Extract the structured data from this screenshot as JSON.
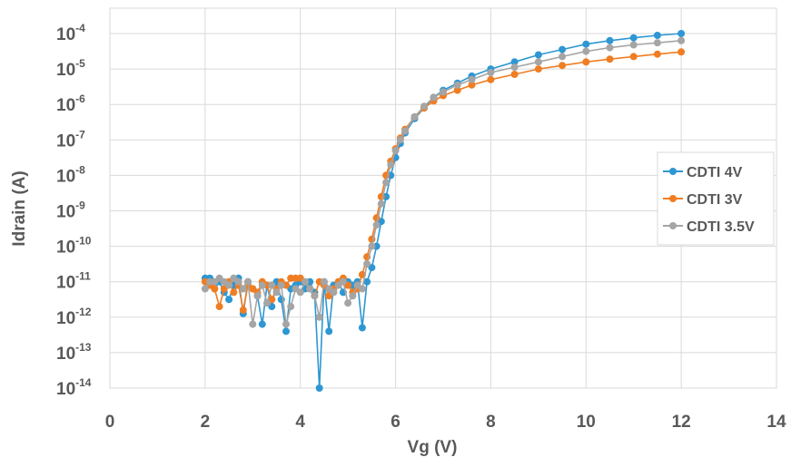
{
  "chart_data": {
    "type": "scatter",
    "xlabel": "Vg (V)",
    "ylabel": "Idrain (A)",
    "xlim": [
      0,
      14
    ],
    "ylim_exponent": [
      -14,
      -4
    ],
    "y_scale": "log",
    "x_ticks": [
      "0",
      "2",
      "4",
      "6",
      "8",
      "10",
      "12",
      "14"
    ],
    "y_ticks": [
      {
        "base": "10",
        "exp": "-4"
      },
      {
        "base": "10",
        "exp": "-5"
      },
      {
        "base": "10",
        "exp": "-6"
      },
      {
        "base": "10",
        "exp": "-7"
      },
      {
        "base": "10",
        "exp": "-8"
      },
      {
        "base": "10",
        "exp": "-9"
      },
      {
        "base": "10",
        "exp": "-10"
      },
      {
        "base": "10",
        "exp": "-11"
      },
      {
        "base": "10",
        "exp": "-12"
      },
      {
        "base": "10",
        "exp": "-13"
      },
      {
        "base": "10",
        "exp": "-14"
      }
    ],
    "grid": true,
    "legend_position": "right",
    "series": [
      {
        "name": "CDTI 4V",
        "color": "#2e97d3",
        "points": [
          [
            2.0,
            -10.9
          ],
          [
            2.1,
            -10.9
          ],
          [
            2.2,
            -11.2
          ],
          [
            2.3,
            -11.0
          ],
          [
            2.4,
            -11.3
          ],
          [
            2.5,
            -11.5
          ],
          [
            2.6,
            -11.1
          ],
          [
            2.7,
            -10.9
          ],
          [
            2.8,
            -11.9
          ],
          [
            2.9,
            -11.0
          ],
          [
            3.0,
            -11.2
          ],
          [
            3.1,
            -11.4
          ],
          [
            3.2,
            -12.2
          ],
          [
            3.3,
            -11.1
          ],
          [
            3.4,
            -11.7
          ],
          [
            3.5,
            -11.0
          ],
          [
            3.6,
            -11.5
          ],
          [
            3.7,
            -12.4
          ],
          [
            3.8,
            -11.2
          ],
          [
            3.9,
            -11.1
          ],
          [
            4.0,
            -11.0
          ],
          [
            4.1,
            -11.2
          ],
          [
            4.2,
            -11.0
          ],
          [
            4.3,
            -11.3
          ],
          [
            4.4,
            -14.0
          ],
          [
            4.5,
            -11.0
          ],
          [
            4.6,
            -12.4
          ],
          [
            4.7,
            -11.1
          ],
          [
            4.8,
            -11.0
          ],
          [
            4.9,
            -11.3
          ],
          [
            5.0,
            -11.0
          ],
          [
            5.1,
            -11.1
          ],
          [
            5.2,
            -11.0
          ],
          [
            5.3,
            -12.3
          ],
          [
            5.4,
            -11.0
          ],
          [
            5.5,
            -10.6
          ],
          [
            5.6,
            -10.0
          ],
          [
            5.7,
            -9.3
          ],
          [
            5.8,
            -8.6
          ],
          [
            5.9,
            -8.0
          ],
          [
            6.0,
            -7.5
          ],
          [
            6.1,
            -7.1
          ],
          [
            6.2,
            -6.8
          ],
          [
            6.4,
            -6.4
          ],
          [
            6.6,
            -6.1
          ],
          [
            6.8,
            -5.8
          ],
          [
            7.0,
            -5.6
          ],
          [
            7.3,
            -5.4
          ],
          [
            7.6,
            -5.2
          ],
          [
            8.0,
            -5.0
          ],
          [
            8.5,
            -4.8
          ],
          [
            9.0,
            -4.6
          ],
          [
            9.5,
            -4.45
          ],
          [
            10.0,
            -4.3
          ],
          [
            10.5,
            -4.2
          ],
          [
            11.0,
            -4.12
          ],
          [
            11.5,
            -4.05
          ],
          [
            12.0,
            -4.0
          ]
        ]
      },
      {
        "name": "CDTI 3V",
        "color": "#f07d22",
        "points": [
          [
            2.0,
            -11.0
          ],
          [
            2.1,
            -11.1
          ],
          [
            2.2,
            -11.2
          ],
          [
            2.3,
            -11.7
          ],
          [
            2.4,
            -11.2
          ],
          [
            2.5,
            -11.0
          ],
          [
            2.6,
            -11.3
          ],
          [
            2.7,
            -11.1
          ],
          [
            2.8,
            -11.8
          ],
          [
            2.9,
            -11.1
          ],
          [
            3.0,
            -11.2
          ],
          [
            3.1,
            -11.3
          ],
          [
            3.2,
            -11.0
          ],
          [
            3.3,
            -11.1
          ],
          [
            3.4,
            -11.5
          ],
          [
            3.5,
            -11.2
          ],
          [
            3.6,
            -11.0
          ],
          [
            3.7,
            -11.1
          ],
          [
            3.8,
            -10.9
          ],
          [
            3.9,
            -10.9
          ],
          [
            4.0,
            -10.9
          ],
          [
            4.1,
            -11.0
          ],
          [
            4.2,
            -11.2
          ],
          [
            4.3,
            -11.4
          ],
          [
            4.4,
            -11.0
          ],
          [
            4.5,
            -11.1
          ],
          [
            4.6,
            -11.4
          ],
          [
            4.7,
            -11.2
          ],
          [
            4.8,
            -11.0
          ],
          [
            4.9,
            -10.9
          ],
          [
            5.0,
            -11.1
          ],
          [
            5.1,
            -11.3
          ],
          [
            5.2,
            -11.2
          ],
          [
            5.3,
            -10.8
          ],
          [
            5.4,
            -10.3
          ],
          [
            5.5,
            -9.8
          ],
          [
            5.6,
            -9.2
          ],
          [
            5.7,
            -8.6
          ],
          [
            5.8,
            -8.0
          ],
          [
            5.9,
            -7.6
          ],
          [
            6.0,
            -7.25
          ],
          [
            6.1,
            -6.95
          ],
          [
            6.2,
            -6.7
          ],
          [
            6.4,
            -6.35
          ],
          [
            6.6,
            -6.1
          ],
          [
            6.8,
            -5.9
          ],
          [
            7.0,
            -5.75
          ],
          [
            7.3,
            -5.6
          ],
          [
            7.6,
            -5.45
          ],
          [
            8.0,
            -5.3
          ],
          [
            8.5,
            -5.15
          ],
          [
            9.0,
            -5.0
          ],
          [
            9.5,
            -4.9
          ],
          [
            10.0,
            -4.8
          ],
          [
            10.5,
            -4.72
          ],
          [
            11.0,
            -4.65
          ],
          [
            11.5,
            -4.58
          ],
          [
            12.0,
            -4.52
          ]
        ]
      },
      {
        "name": "CDTI 3.5V",
        "color": "#a5a5a5",
        "points": [
          [
            2.0,
            -11.2
          ],
          [
            2.1,
            -11.0
          ],
          [
            2.2,
            -11.0
          ],
          [
            2.3,
            -10.9
          ],
          [
            2.4,
            -11.0
          ],
          [
            2.5,
            -11.1
          ],
          [
            2.6,
            -10.9
          ],
          [
            2.7,
            -11.0
          ],
          [
            2.8,
            -11.2
          ],
          [
            2.9,
            -11.0
          ],
          [
            3.0,
            -12.2
          ],
          [
            3.1,
            -11.4
          ],
          [
            3.2,
            -11.1
          ],
          [
            3.3,
            -11.6
          ],
          [
            3.4,
            -11.1
          ],
          [
            3.5,
            -11.3
          ],
          [
            3.6,
            -11.1
          ],
          [
            3.7,
            -12.2
          ],
          [
            3.8,
            -11.7
          ],
          [
            3.9,
            -11.2
          ],
          [
            4.0,
            -11.3
          ],
          [
            4.1,
            -11.0
          ],
          [
            4.2,
            -11.2
          ],
          [
            4.3,
            -11.4
          ],
          [
            4.4,
            -12.0
          ],
          [
            4.5,
            -11.0
          ],
          [
            4.6,
            -11.2
          ],
          [
            4.7,
            -11.3
          ],
          [
            4.8,
            -11.1
          ],
          [
            4.9,
            -11.0
          ],
          [
            5.0,
            -11.6
          ],
          [
            5.1,
            -11.4
          ],
          [
            5.2,
            -11.1
          ],
          [
            5.3,
            -11.2
          ],
          [
            5.4,
            -10.5
          ],
          [
            5.5,
            -10.0
          ],
          [
            5.6,
            -9.4
          ],
          [
            5.7,
            -8.8
          ],
          [
            5.8,
            -8.2
          ],
          [
            5.9,
            -7.7
          ],
          [
            6.0,
            -7.3
          ],
          [
            6.1,
            -7.0
          ],
          [
            6.2,
            -6.75
          ],
          [
            6.4,
            -6.35
          ],
          [
            6.6,
            -6.05
          ],
          [
            6.8,
            -5.8
          ],
          [
            7.0,
            -5.65
          ],
          [
            7.3,
            -5.45
          ],
          [
            7.6,
            -5.3
          ],
          [
            8.0,
            -5.1
          ],
          [
            8.5,
            -4.95
          ],
          [
            9.0,
            -4.8
          ],
          [
            9.5,
            -4.65
          ],
          [
            10.0,
            -4.5
          ],
          [
            10.5,
            -4.4
          ],
          [
            11.0,
            -4.32
          ],
          [
            11.5,
            -4.26
          ],
          [
            12.0,
            -4.2
          ]
        ]
      }
    ]
  }
}
